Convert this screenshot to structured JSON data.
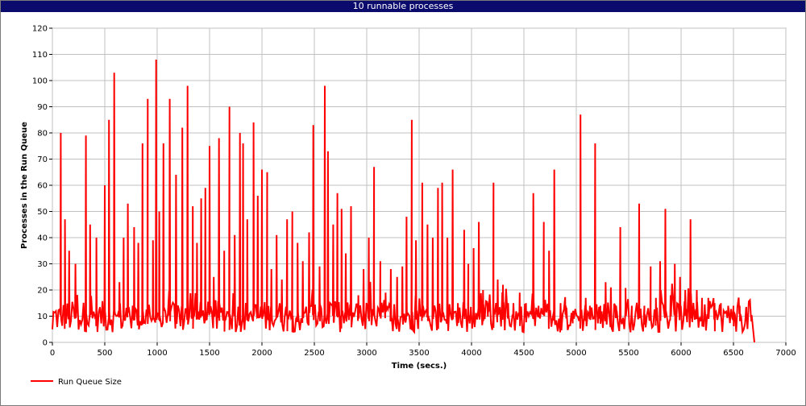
{
  "window": {
    "title": "10 runnable processes"
  },
  "chart_data": {
    "type": "line",
    "title": "10 runnable processes",
    "xlabel": "Time (secs.)",
    "ylabel": "Processes in the Run Queue",
    "xlim": [
      0,
      7000
    ],
    "ylim": [
      0,
      120
    ],
    "xticks": [
      0,
      500,
      1000,
      1500,
      2000,
      2500,
      3000,
      3500,
      4000,
      4500,
      5000,
      5500,
      6000,
      6500,
      7000
    ],
    "yticks": [
      0,
      10,
      20,
      30,
      40,
      50,
      60,
      70,
      80,
      90,
      100,
      110,
      120
    ],
    "grid": true,
    "legend_position": "bottom-left",
    "colors": {
      "series": "#ff0000",
      "grid": "#c0c0c0",
      "title_bar": "#0b0b6e"
    },
    "series": [
      {
        "name": "Run Queue Size",
        "peaks": [
          [
            80,
            80
          ],
          [
            120,
            47
          ],
          [
            160,
            35
          ],
          [
            220,
            30
          ],
          [
            320,
            79
          ],
          [
            360,
            45
          ],
          [
            420,
            40
          ],
          [
            500,
            60
          ],
          [
            540,
            85
          ],
          [
            590,
            103
          ],
          [
            640,
            23
          ],
          [
            680,
            40
          ],
          [
            720,
            53
          ],
          [
            780,
            44
          ],
          [
            820,
            38
          ],
          [
            860,
            76
          ],
          [
            910,
            93
          ],
          [
            960,
            39
          ],
          [
            990,
            108
          ],
          [
            1020,
            50
          ],
          [
            1060,
            76
          ],
          [
            1120,
            93
          ],
          [
            1180,
            64
          ],
          [
            1240,
            82
          ],
          [
            1290,
            98
          ],
          [
            1340,
            52
          ],
          [
            1380,
            38
          ],
          [
            1420,
            55
          ],
          [
            1460,
            59
          ],
          [
            1500,
            75
          ],
          [
            1540,
            25
          ],
          [
            1590,
            78
          ],
          [
            1640,
            35
          ],
          [
            1690,
            90
          ],
          [
            1740,
            41
          ],
          [
            1790,
            80
          ],
          [
            1820,
            76
          ],
          [
            1860,
            47
          ],
          [
            1920,
            84
          ],
          [
            1960,
            56
          ],
          [
            2000,
            66
          ],
          [
            2050,
            65
          ],
          [
            2090,
            28
          ],
          [
            2140,
            41
          ],
          [
            2190,
            24
          ],
          [
            2240,
            47
          ],
          [
            2290,
            50
          ],
          [
            2340,
            38
          ],
          [
            2390,
            31
          ],
          [
            2450,
            42
          ],
          [
            2490,
            83
          ],
          [
            2550,
            29
          ],
          [
            2600,
            98
          ],
          [
            2630,
            73
          ],
          [
            2680,
            45
          ],
          [
            2720,
            57
          ],
          [
            2760,
            51
          ],
          [
            2800,
            34
          ],
          [
            2850,
            52
          ],
          [
            2920,
            18
          ],
          [
            2970,
            28
          ],
          [
            3020,
            40
          ],
          [
            3070,
            67
          ],
          [
            3130,
            31
          ],
          [
            3180,
            19
          ],
          [
            3230,
            28
          ],
          [
            3290,
            25
          ],
          [
            3340,
            29
          ],
          [
            3380,
            48
          ],
          [
            3430,
            85
          ],
          [
            3470,
            39
          ],
          [
            3530,
            61
          ],
          [
            3580,
            45
          ],
          [
            3630,
            40
          ],
          [
            3680,
            59
          ],
          [
            3720,
            61
          ],
          [
            3770,
            40
          ],
          [
            3820,
            66
          ],
          [
            3870,
            15
          ],
          [
            3930,
            43
          ],
          [
            3970,
            30
          ],
          [
            4020,
            36
          ],
          [
            4070,
            46
          ],
          [
            4110,
            20
          ],
          [
            4160,
            15
          ],
          [
            4210,
            61
          ],
          [
            4250,
            24
          ],
          [
            4300,
            22
          ],
          [
            4350,
            15
          ],
          [
            4400,
            15
          ],
          [
            4460,
            19
          ],
          [
            4520,
            15
          ],
          [
            4590,
            57
          ],
          [
            4640,
            14
          ],
          [
            4690,
            46
          ],
          [
            4740,
            35
          ],
          [
            4790,
            66
          ],
          [
            4850,
            15
          ],
          [
            4900,
            14
          ],
          [
            4970,
            12
          ],
          [
            5040,
            87
          ],
          [
            5090,
            17
          ],
          [
            5130,
            14
          ],
          [
            5180,
            76
          ],
          [
            5230,
            14
          ],
          [
            5280,
            23
          ],
          [
            5330,
            21
          ],
          [
            5380,
            14
          ],
          [
            5420,
            44
          ],
          [
            5470,
            14
          ],
          [
            5530,
            14
          ],
          [
            5600,
            53
          ],
          [
            5650,
            14
          ],
          [
            5710,
            29
          ],
          [
            5760,
            17
          ],
          [
            5800,
            31
          ],
          [
            5850,
            51
          ],
          [
            5900,
            18
          ],
          [
            5940,
            30
          ],
          [
            5990,
            25
          ],
          [
            6040,
            20
          ],
          [
            6090,
            47
          ],
          [
            6150,
            20
          ],
          [
            6200,
            17
          ],
          [
            6260,
            17
          ],
          [
            6320,
            15
          ],
          [
            6380,
            15
          ],
          [
            6450,
            14
          ],
          [
            6500,
            14
          ],
          [
            6560,
            14
          ],
          [
            6620,
            13
          ],
          [
            6670,
            9
          ],
          [
            6700,
            0
          ]
        ],
        "baseline": 8
      }
    ]
  }
}
